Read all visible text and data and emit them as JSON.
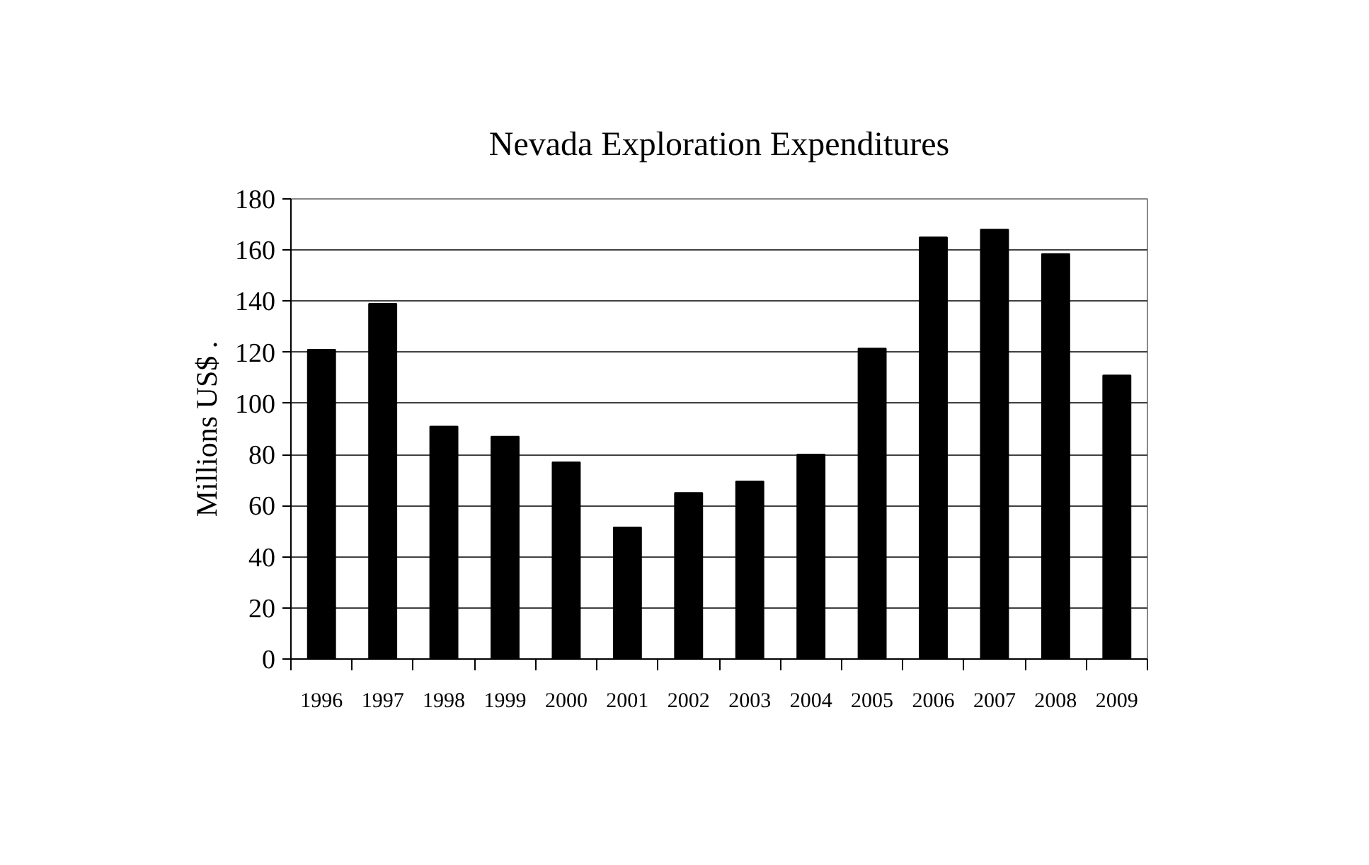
{
  "chart_data": {
    "type": "bar",
    "title": "Nevada Exploration Expenditures",
    "ylabel": "Millions US$ .",
    "categories": [
      "1996",
      "1997",
      "1998",
      "1999",
      "2000",
      "2001",
      "2002",
      "2003",
      "2004",
      "2005",
      "2006",
      "2007",
      "2008",
      "2009"
    ],
    "values": [
      121,
      139,
      91,
      87,
      77,
      51.5,
      65,
      69.5,
      80,
      121.5,
      165,
      168,
      158.5,
      111
    ],
    "color": "#000000",
    "ylim": [
      0,
      180
    ],
    "yticks": [
      0,
      20,
      40,
      60,
      80,
      100,
      120,
      140,
      160,
      180
    ],
    "grid": "y"
  }
}
